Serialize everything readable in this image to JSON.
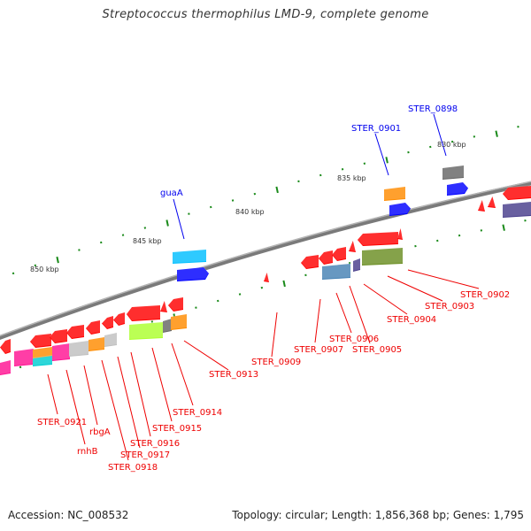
{
  "title": "Streptococcus thermophilus LMD-9, complete genome",
  "footer": {
    "accession": "Accession: NC_008532",
    "summary": "Topology: circular; Length: 1,856,368 bp; Genes: 1,795"
  },
  "colors": {
    "backbone": "#8a8a8a",
    "tick": "#1a8a1a",
    "label_forward": "#0000ee",
    "label_reverse": "#ee0000",
    "tick_label": "#333333"
  },
  "chart_data": {
    "type": "genome_map",
    "topology": "circular",
    "length_bp": 1856368,
    "gene_count": 1795,
    "visible_range_kbp": [
      826,
      852
    ],
    "tick_labels": [
      "830 kbp",
      "835 kbp",
      "840 kbp",
      "845 kbp",
      "850 kbp"
    ],
    "forward_labels": [
      {
        "name": "STER_0898"
      },
      {
        "name": "STER_0901"
      },
      {
        "name": "guaA"
      }
    ],
    "reverse_labels": [
      {
        "name": "STER_0902"
      },
      {
        "name": "STER_0903"
      },
      {
        "name": "STER_0904"
      },
      {
        "name": "STER_0905"
      },
      {
        "name": "STER_0906"
      },
      {
        "name": "STER_0907"
      },
      {
        "name": "STER_0909"
      },
      {
        "name": "STER_0913"
      },
      {
        "name": "STER_0914"
      },
      {
        "name": "STER_0915"
      },
      {
        "name": "STER_0916"
      },
      {
        "name": "STER_0917"
      },
      {
        "name": "STER_0918"
      },
      {
        "name": "rbgA"
      },
      {
        "name": "rnhB"
      },
      {
        "name": "STER_0921"
      }
    ],
    "feature_colors": [
      "#ff0000",
      "#0000ff",
      "#ff8c00",
      "#666666",
      "#00bfff",
      "#4682b4",
      "#483d8b",
      "#6b8e23",
      "#adff2f",
      "#c0c0c0",
      "#ff1493",
      "#00ced1"
    ]
  }
}
